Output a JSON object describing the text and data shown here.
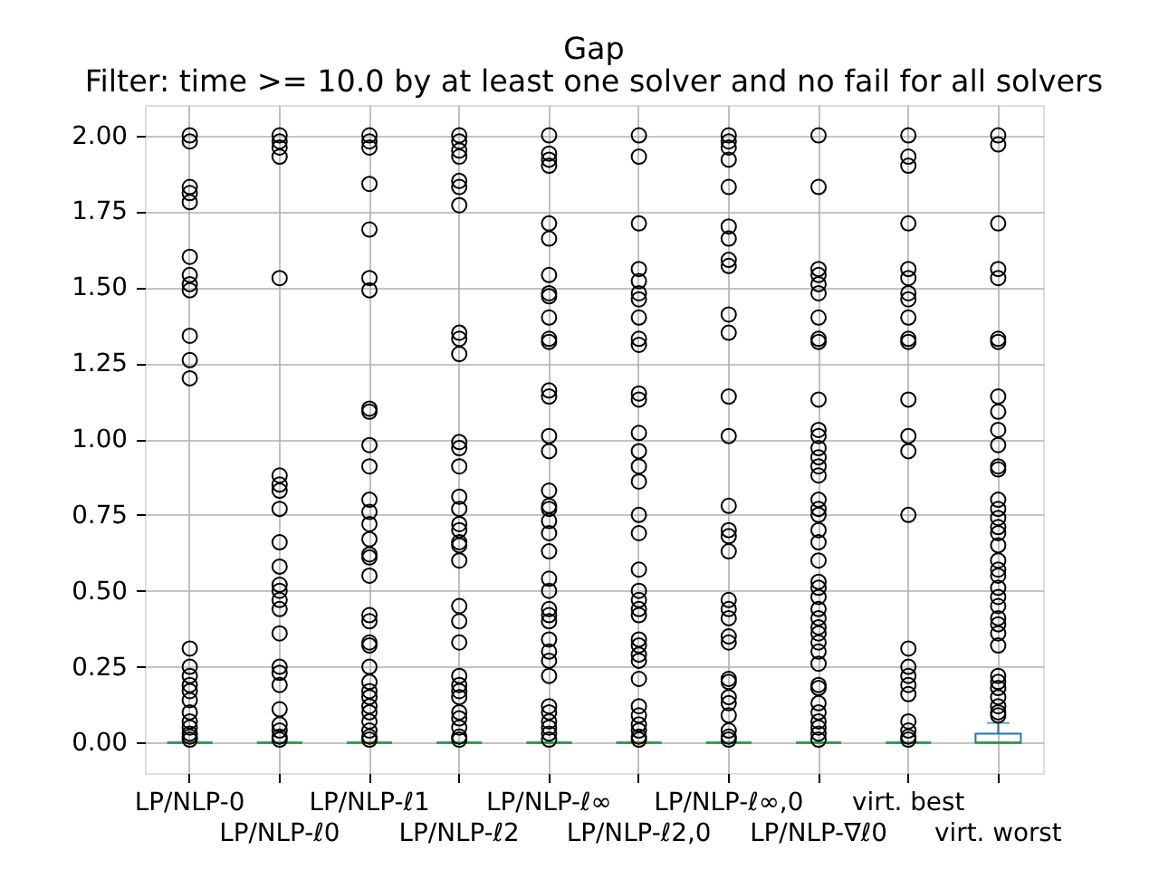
{
  "chart_data": {
    "type": "box",
    "title": "Gap",
    "subtitle": "Filter: time >= 10.0 by at least one solver and no fail for all solvers",
    "categories": [
      "LP/NLP-0",
      "LP/NLP-ℓ0",
      "LP/NLP-ℓ1",
      "LP/NLP-ℓ2",
      "LP/NLP-ℓ∞",
      "LP/NLP-ℓ2,0",
      "LP/NLP-ℓ∞,0",
      "LP/NLP-∇ℓ0",
      "virt. best",
      "virt. worst"
    ],
    "series": [
      {
        "color": "#1f77b4",
        "boxes": [
          {
            "low": 0,
            "q1": 0,
            "median": 0,
            "q3": 0,
            "high": 0,
            "outliers": [
              2.0,
              1.98,
              1.83,
              1.81,
              1.78,
              1.6,
              1.54,
              1.51,
              1.49,
              1.34,
              1.26,
              1.2,
              0.31,
              0.25,
              0.22,
              0.19,
              0.17,
              0.14,
              0.1,
              0.07,
              0.05,
              0.03,
              0.02,
              0.01
            ]
          },
          {
            "low": 0,
            "q1": 0,
            "median": 0,
            "q3": 0,
            "high": 0,
            "outliers": [
              2.0,
              1.98,
              1.96,
              1.93,
              1.53,
              0.88,
              0.85,
              0.83,
              0.77,
              0.66,
              0.58,
              0.52,
              0.5,
              0.47,
              0.44,
              0.36,
              0.25,
              0.23,
              0.19,
              0.11,
              0.06,
              0.04,
              0.02,
              0.01
            ]
          },
          {
            "low": 0,
            "q1": 0,
            "median": 0,
            "q3": 0,
            "high": 0,
            "outliers": [
              2.0,
              1.98,
              1.96,
              1.84,
              1.69,
              1.53,
              1.49,
              1.1,
              1.09,
              0.98,
              0.91,
              0.8,
              0.76,
              0.72,
              0.67,
              0.62,
              0.61,
              0.55,
              0.42,
              0.4,
              0.33,
              0.32,
              0.25,
              0.2,
              0.17,
              0.15,
              0.12,
              0.1,
              0.07,
              0.04,
              0.02,
              0.01
            ]
          },
          {
            "low": 0,
            "q1": 0,
            "median": 0,
            "q3": 0,
            "high": 0,
            "outliers": [
              2.0,
              1.98,
              1.95,
              1.93,
              1.85,
              1.83,
              1.77,
              1.35,
              1.33,
              1.28,
              0.99,
              0.97,
              0.91,
              0.81,
              0.77,
              0.72,
              0.7,
              0.66,
              0.65,
              0.6,
              0.45,
              0.4,
              0.33,
              0.22,
              0.19,
              0.17,
              0.15,
              0.1,
              0.08,
              0.05,
              0.02,
              0.01
            ]
          },
          {
            "low": 0,
            "q1": 0,
            "median": 0,
            "q3": 0,
            "high": 0,
            "outliers": [
              2.0,
              1.94,
              1.92,
              1.9,
              1.71,
              1.66,
              1.54,
              1.48,
              1.47,
              1.4,
              1.33,
              1.32,
              1.16,
              1.14,
              1.01,
              0.96,
              0.83,
              0.78,
              0.77,
              0.73,
              0.69,
              0.63,
              0.54,
              0.5,
              0.44,
              0.42,
              0.4,
              0.34,
              0.3,
              0.27,
              0.22,
              0.12,
              0.1,
              0.07,
              0.05,
              0.03,
              0.01
            ]
          },
          {
            "low": 0,
            "q1": 0,
            "median": 0,
            "q3": 0,
            "high": 0,
            "outliers": [
              2.0,
              1.93,
              1.71,
              1.56,
              1.52,
              1.48,
              1.46,
              1.4,
              1.33,
              1.31,
              1.15,
              1.13,
              1.02,
              0.96,
              0.91,
              0.86,
              0.75,
              0.69,
              0.57,
              0.5,
              0.47,
              0.44,
              0.42,
              0.34,
              0.32,
              0.29,
              0.27,
              0.21,
              0.12,
              0.09,
              0.06,
              0.04,
              0.02,
              0.01
            ]
          },
          {
            "low": 0,
            "q1": 0,
            "median": 0,
            "q3": 0,
            "high": 0,
            "outliers": [
              2.0,
              1.98,
              1.96,
              1.92,
              1.83,
              1.7,
              1.66,
              1.59,
              1.57,
              1.41,
              1.35,
              1.14,
              1.01,
              0.78,
              0.7,
              0.68,
              0.63,
              0.47,
              0.44,
              0.41,
              0.35,
              0.33,
              0.21,
              0.2,
              0.15,
              0.13,
              0.09,
              0.04,
              0.02,
              0.01
            ]
          },
          {
            "low": 0,
            "q1": 0,
            "median": 0,
            "q3": 0,
            "high": 0,
            "outliers": [
              2.0,
              1.83,
              1.56,
              1.54,
              1.51,
              1.48,
              1.4,
              1.33,
              1.32,
              1.13,
              1.03,
              1.01,
              0.97,
              0.94,
              0.91,
              0.88,
              0.8,
              0.77,
              0.75,
              0.7,
              0.66,
              0.6,
              0.53,
              0.51,
              0.48,
              0.44,
              0.41,
              0.38,
              0.36,
              0.33,
              0.3,
              0.26,
              0.19,
              0.18,
              0.13,
              0.1,
              0.07,
              0.05,
              0.03,
              0.01
            ]
          },
          {
            "low": 0,
            "q1": 0,
            "median": 0,
            "q3": 0,
            "high": 0,
            "outliers": [
              2.0,
              1.93,
              1.9,
              1.71,
              1.56,
              1.53,
              1.48,
              1.46,
              1.4,
              1.33,
              1.32,
              1.13,
              1.01,
              0.96,
              0.75,
              0.31,
              0.25,
              0.22,
              0.19,
              0.16,
              0.07,
              0.04,
              0.02,
              0.01
            ]
          },
          {
            "low": 0,
            "q1": 0,
            "median": 0,
            "q3": 0.03,
            "high": 0.065,
            "outliers": [
              2.0,
              1.97,
              1.71,
              1.56,
              1.53,
              1.33,
              1.32,
              1.14,
              1.09,
              1.03,
              0.98,
              0.91,
              0.9,
              0.8,
              0.77,
              0.74,
              0.71,
              0.69,
              0.65,
              0.6,
              0.57,
              0.55,
              0.51,
              0.48,
              0.45,
              0.41,
              0.39,
              0.36,
              0.32,
              0.22,
              0.2,
              0.18,
              0.15,
              0.12,
              0.1,
              0.09
            ]
          }
        ]
      }
    ],
    "ylim": [
      -0.1,
      2.1
    ],
    "yticks": [
      {
        "value": 0,
        "label": "0.00"
      },
      {
        "value": 0.25,
        "label": "0.25"
      },
      {
        "value": 0.5,
        "label": "0.50"
      },
      {
        "value": 0.75,
        "label": "0.75"
      },
      {
        "value": 1,
        "label": "1.00"
      },
      {
        "value": 1.25,
        "label": "1.25"
      },
      {
        "value": 1.5,
        "label": "1.50"
      },
      {
        "value": 1.75,
        "label": "1.75"
      },
      {
        "value": 2,
        "label": "2.00"
      }
    ],
    "grid": true,
    "marker": "circle"
  }
}
